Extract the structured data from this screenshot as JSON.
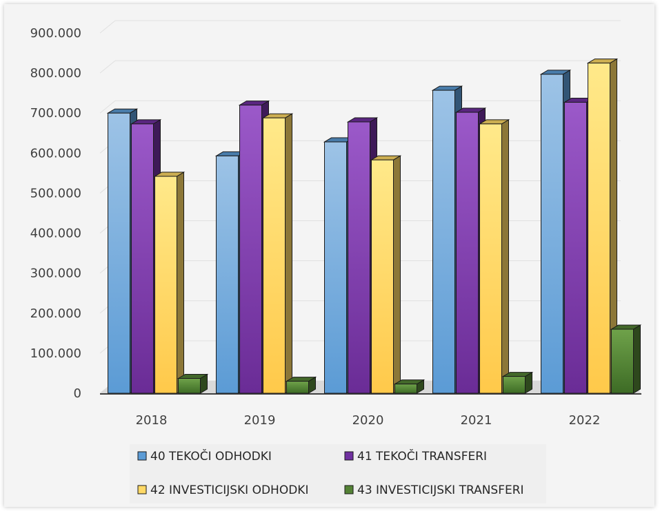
{
  "chart_data": {
    "type": "bar",
    "categories": [
      "2018",
      "2019",
      "2020",
      "2021",
      "2022"
    ],
    "series": [
      {
        "name": "40 TEKOČI ODHODKI",
        "values": [
          700000,
          593000,
          628000,
          757000,
          797000
        ],
        "color": "#5b9bd5"
      },
      {
        "name": "41 TEKOČI TRANSFERI",
        "values": [
          673000,
          720000,
          678000,
          702000,
          727000
        ],
        "color": "#7030a0"
      },
      {
        "name": "42 INVESTICIJSKI ODHODKI",
        "values": [
          542000,
          688000,
          583000,
          673000,
          825000
        ],
        "color": "#ffd966"
      },
      {
        "name": "43 INVESTICIJSKI TRANSFERI",
        "values": [
          37000,
          30000,
          23000,
          42000,
          160000
        ],
        "color": "#548235"
      }
    ],
    "y_ticks": [
      "0",
      "100.000",
      "200.000",
      "300.000",
      "400.000",
      "500.000",
      "600.000",
      "700.000",
      "800.000",
      "900.000"
    ],
    "ylim": [
      0,
      900000
    ],
    "legend_position": "bottom",
    "grid": true,
    "style": "3d-clustered-column"
  }
}
